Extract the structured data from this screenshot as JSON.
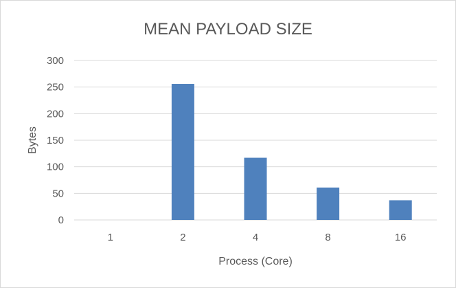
{
  "chart_data": {
    "type": "bar",
    "title": "MEAN PAYLOAD SIZE",
    "xlabel": "Process (Core)",
    "ylabel": "Bytes",
    "categories": [
      "1",
      "2",
      "4",
      "8",
      "16"
    ],
    "values": [
      0,
      256,
      117,
      61,
      37
    ],
    "ylim": [
      0,
      300
    ],
    "yticks": [
      "0",
      "50",
      "100",
      "150",
      "200",
      "250",
      "300"
    ],
    "grid": true,
    "legend": "none",
    "colors": {
      "bar": "#4f81bd",
      "grid": "#d9d9d9",
      "text": "#595959"
    }
  }
}
